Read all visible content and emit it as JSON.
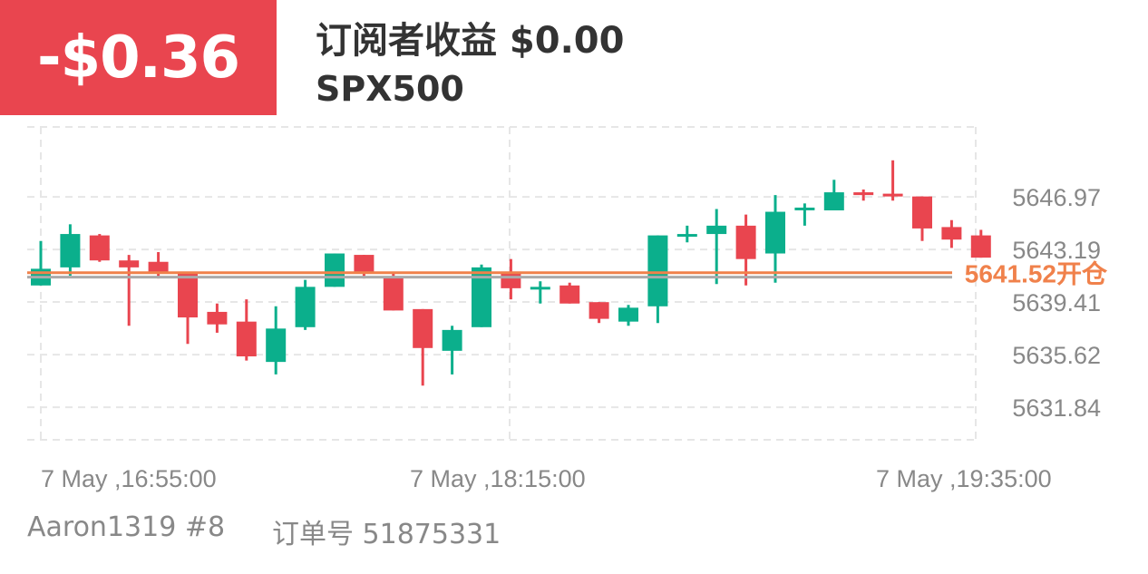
{
  "header": {
    "pnl": "-$0.36",
    "subscriber_income": "订阅者收益 $0.00",
    "symbol": "SPX500"
  },
  "footer": {
    "account": "Aaron1319 #8",
    "order_label": "订单号 51875331"
  },
  "colors": {
    "up": "#0BAF8C",
    "down": "#E9454F",
    "open_line": "#F0814B",
    "current_line": "#AAAAAA",
    "grid": "#E6E6E6"
  },
  "chart_data": {
    "type": "candlestick",
    "title": "",
    "xlabel": "",
    "ylabel": "",
    "ylim": [
      5629.5,
      5652.0
    ],
    "y_ticks": [
      "5646.97",
      "5643.19",
      "5639.41",
      "5635.62",
      "5631.84"
    ],
    "x_ticks": [
      "7 May ,16:55:00",
      "7 May ,18:15:00",
      "7 May ,19:35:00"
    ],
    "open_line": {
      "value": 5641.52,
      "label": "5641.52开仓"
    },
    "current_price": 5641.2,
    "candles": [
      {
        "o": 5640.6,
        "h": 5643.8,
        "l": 5640.6,
        "c": 5641.8
      },
      {
        "o": 5641.9,
        "h": 5645.0,
        "l": 5641.3,
        "c": 5644.3
      },
      {
        "o": 5644.2,
        "h": 5644.3,
        "l": 5642.3,
        "c": 5642.4
      },
      {
        "o": 5642.4,
        "h": 5642.8,
        "l": 5637.7,
        "c": 5641.9
      },
      {
        "o": 5642.3,
        "h": 5643.0,
        "l": 5641.1,
        "c": 5641.6
      },
      {
        "o": 5641.6,
        "h": 5641.6,
        "l": 5636.4,
        "c": 5638.3
      },
      {
        "o": 5638.7,
        "h": 5639.3,
        "l": 5637.2,
        "c": 5637.8
      },
      {
        "o": 5638.0,
        "h": 5639.6,
        "l": 5635.2,
        "c": 5635.5
      },
      {
        "o": 5635.1,
        "h": 5639.1,
        "l": 5634.2,
        "c": 5637.5
      },
      {
        "o": 5637.6,
        "h": 5641.0,
        "l": 5637.4,
        "c": 5640.5
      },
      {
        "o": 5640.5,
        "h": 5642.9,
        "l": 5640.5,
        "c": 5642.9
      },
      {
        "o": 5642.8,
        "h": 5642.8,
        "l": 5641.1,
        "c": 5641.6
      },
      {
        "o": 5641.2,
        "h": 5641.6,
        "l": 5638.8,
        "c": 5638.8
      },
      {
        "o": 5638.9,
        "h": 5638.9,
        "l": 5633.4,
        "c": 5636.1
      },
      {
        "o": 5635.9,
        "h": 5637.7,
        "l": 5634.2,
        "c": 5637.4
      },
      {
        "o": 5637.6,
        "h": 5642.1,
        "l": 5637.6,
        "c": 5641.9
      },
      {
        "o": 5641.6,
        "h": 5642.5,
        "l": 5639.6,
        "c": 5640.4
      },
      {
        "o": 5640.4,
        "h": 5640.9,
        "l": 5639.3,
        "c": 5640.5
      },
      {
        "o": 5640.6,
        "h": 5640.8,
        "l": 5639.3,
        "c": 5639.3
      },
      {
        "o": 5639.4,
        "h": 5639.4,
        "l": 5637.9,
        "c": 5638.2
      },
      {
        "o": 5638.0,
        "h": 5639.2,
        "l": 5637.7,
        "c": 5639.0
      },
      {
        "o": 5639.1,
        "h": 5644.2,
        "l": 5637.9,
        "c": 5644.2
      },
      {
        "o": 5644.3,
        "h": 5644.9,
        "l": 5643.7,
        "c": 5644.3
      },
      {
        "o": 5644.3,
        "h": 5646.1,
        "l": 5640.7,
        "c": 5644.9
      },
      {
        "o": 5644.9,
        "h": 5645.7,
        "l": 5640.6,
        "c": 5642.5
      },
      {
        "o": 5642.9,
        "h": 5647.1,
        "l": 5640.8,
        "c": 5645.9
      },
      {
        "o": 5646.2,
        "h": 5646.5,
        "l": 5644.9,
        "c": 5646.2
      },
      {
        "o": 5646.0,
        "h": 5648.2,
        "l": 5646.0,
        "c": 5647.3
      },
      {
        "o": 5647.3,
        "h": 5647.5,
        "l": 5646.7,
        "c": 5647.1
      },
      {
        "o": 5647.2,
        "h": 5649.6,
        "l": 5646.7,
        "c": 5647.0
      },
      {
        "o": 5647.0,
        "h": 5647.0,
        "l": 5643.8,
        "c": 5644.7
      },
      {
        "o": 5644.8,
        "h": 5645.3,
        "l": 5643.3,
        "c": 5643.9
      },
      {
        "o": 5644.2,
        "h": 5644.6,
        "l": 5642.6,
        "c": 5642.6
      }
    ]
  }
}
